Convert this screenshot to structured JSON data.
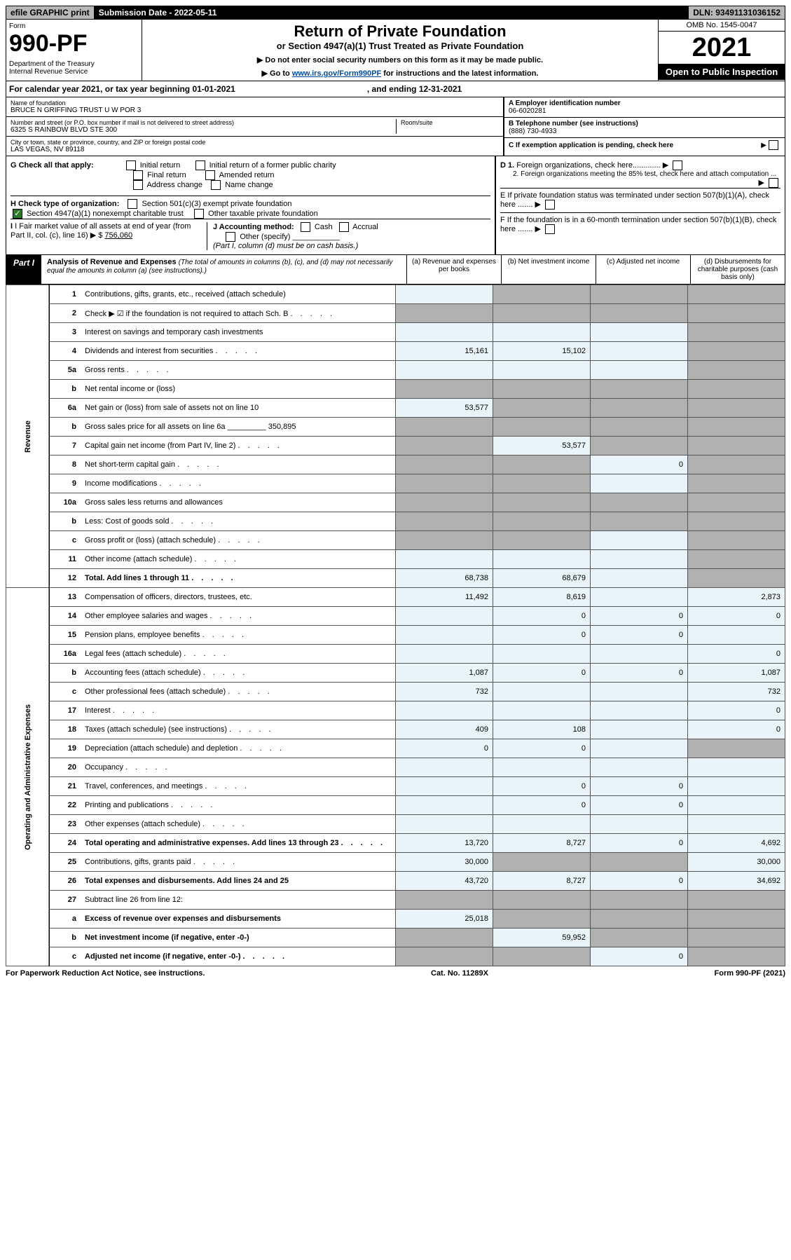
{
  "top": {
    "efile": "efile GRAPHIC print",
    "sub_label": "Submission Date - 2022-05-11",
    "dln": "DLN: 93491131036152"
  },
  "header": {
    "form_label": "Form",
    "form_num": "990-PF",
    "dept": "Department of the Treasury\nInternal Revenue Service",
    "title": "Return of Private Foundation",
    "subtitle": "or Section 4947(a)(1) Trust Treated as Private Foundation",
    "instr1": "▶ Do not enter social security numbers on this form as it may be made public.",
    "instr2_pre": "▶ Go to ",
    "instr2_link": "www.irs.gov/Form990PF",
    "instr2_post": " for instructions and the latest information.",
    "omb": "OMB No. 1545-0047",
    "year": "2021",
    "open": "Open to Public Inspection"
  },
  "cal": {
    "text": "For calendar year 2021, or tax year beginning 01-01-2021",
    "end": ", and ending 12-31-2021"
  },
  "info": {
    "name_label": "Name of foundation",
    "name": "BRUCE N GRIFFING TRUST U W POR 3",
    "addr_label": "Number and street (or P.O. box number if mail is not delivered to street address)",
    "addr": "6325 S RAINBOW BLVD STE 300",
    "room_label": "Room/suite",
    "city_label": "City or town, state or province, country, and ZIP or foreign postal code",
    "city": "LAS VEGAS, NV  89118",
    "a_label": "A Employer identification number",
    "a_val": "06-6020281",
    "b_label": "B Telephone number (see instructions)",
    "b_val": "(888) 730-4933",
    "c_label": "C If exemption application is pending, check here"
  },
  "g": {
    "label": "G Check all that apply:",
    "opts": [
      "Initial return",
      "Final return",
      "Address change",
      "Initial return of a former public charity",
      "Amended return",
      "Name change"
    ]
  },
  "h": {
    "label": "H Check type of organization:",
    "o1": "Section 501(c)(3) exempt private foundation",
    "o2": "Section 4947(a)(1) nonexempt charitable trust",
    "o3": "Other taxable private foundation"
  },
  "d": {
    "d1": "D 1. Foreign organizations, check here",
    "d2": "2. Foreign organizations meeting the 85% test, check here and attach computation ...",
    "e": "E  If private foundation status was terminated under section 507(b)(1)(A), check here .......",
    "f": "F  If the foundation is in a 60-month termination under section 507(b)(1)(B), check here ......."
  },
  "i": {
    "label": "I Fair market value of all assets at end of year (from Part II, col. (c), line 16)",
    "val": "756,060"
  },
  "j": {
    "label": "J Accounting method:",
    "cash": "Cash",
    "accrual": "Accrual",
    "other": "Other (specify)",
    "note": "(Part I, column (d) must be on cash basis.)"
  },
  "part1": {
    "label": "Part I",
    "title": "Analysis of Revenue and Expenses",
    "note": "(The total of amounts in columns (b), (c), and (d) may not necessarily equal the amounts in column (a) (see instructions).)",
    "ca": "(a)  Revenue and expenses per books",
    "cb": "(b)  Net investment income",
    "cc": "(c)  Adjusted net income",
    "cd": "(d)  Disbursements for charitable purposes (cash basis only)"
  },
  "side": {
    "rev": "Revenue",
    "exp": "Operating and Administrative Expenses"
  },
  "rows": [
    {
      "n": "1",
      "d": "Contributions, gifts, grants, etc., received (attach schedule)",
      "a": "",
      "b": "g",
      "c": "g",
      "x": "g"
    },
    {
      "n": "2",
      "d": "Check ▶ ☑ if the foundation is not required to attach Sch. B",
      "a": "g",
      "b": "g",
      "c": "g",
      "x": "g",
      "dots": true
    },
    {
      "n": "3",
      "d": "Interest on savings and temporary cash investments",
      "a": "",
      "b": "",
      "c": "",
      "x": "g"
    },
    {
      "n": "4",
      "d": "Dividends and interest from securities",
      "a": "15,161",
      "b": "15,102",
      "c": "",
      "x": "g",
      "dots": true
    },
    {
      "n": "5a",
      "d": "Gross rents",
      "a": "",
      "b": "",
      "c": "",
      "x": "g",
      "dots": true
    },
    {
      "n": "b",
      "d": "Net rental income or (loss)",
      "a": "g",
      "b": "g",
      "c": "g",
      "x": "g"
    },
    {
      "n": "6a",
      "d": "Net gain or (loss) from sale of assets not on line 10",
      "a": "53,577",
      "b": "g",
      "c": "g",
      "x": "g"
    },
    {
      "n": "b",
      "d": "Gross sales price for all assets on line 6a _________ 350,895",
      "a": "g",
      "b": "g",
      "c": "g",
      "x": "g"
    },
    {
      "n": "7",
      "d": "Capital gain net income (from Part IV, line 2)",
      "a": "g",
      "b": "53,577",
      "c": "g",
      "x": "g",
      "dots": true
    },
    {
      "n": "8",
      "d": "Net short-term capital gain",
      "a": "g",
      "b": "g",
      "c": "0",
      "x": "g",
      "dots": true
    },
    {
      "n": "9",
      "d": "Income modifications",
      "a": "g",
      "b": "g",
      "c": "",
      "x": "g",
      "dots": true
    },
    {
      "n": "10a",
      "d": "Gross sales less returns and allowances",
      "a": "g",
      "b": "g",
      "c": "g",
      "x": "g"
    },
    {
      "n": "b",
      "d": "Less: Cost of goods sold",
      "a": "g",
      "b": "g",
      "c": "g",
      "x": "g",
      "dots": true
    },
    {
      "n": "c",
      "d": "Gross profit or (loss) (attach schedule)",
      "a": "g",
      "b": "g",
      "c": "",
      "x": "g",
      "dots": true
    },
    {
      "n": "11",
      "d": "Other income (attach schedule)",
      "a": "",
      "b": "",
      "c": "",
      "x": "g",
      "dots": true
    },
    {
      "n": "12",
      "d": "Total. Add lines 1 through 11",
      "a": "68,738",
      "b": "68,679",
      "c": "",
      "x": "g",
      "bold": true,
      "dots": true
    },
    {
      "n": "13",
      "d": "Compensation of officers, directors, trustees, etc.",
      "a": "11,492",
      "b": "8,619",
      "c": "",
      "x": "2,873"
    },
    {
      "n": "14",
      "d": "Other employee salaries and wages",
      "a": "",
      "b": "0",
      "c": "0",
      "x": "0",
      "dots": true
    },
    {
      "n": "15",
      "d": "Pension plans, employee benefits",
      "a": "",
      "b": "0",
      "c": "0",
      "x": "",
      "dots": true
    },
    {
      "n": "16a",
      "d": "Legal fees (attach schedule)",
      "a": "",
      "b": "",
      "c": "",
      "x": "0",
      "dots": true
    },
    {
      "n": "b",
      "d": "Accounting fees (attach schedule)",
      "a": "1,087",
      "b": "0",
      "c": "0",
      "x": "1,087",
      "dots": true
    },
    {
      "n": "c",
      "d": "Other professional fees (attach schedule)",
      "a": "732",
      "b": "",
      "c": "",
      "x": "732",
      "dots": true
    },
    {
      "n": "17",
      "d": "Interest",
      "a": "",
      "b": "",
      "c": "",
      "x": "0",
      "dots": true
    },
    {
      "n": "18",
      "d": "Taxes (attach schedule) (see instructions)",
      "a": "409",
      "b": "108",
      "c": "",
      "x": "0",
      "dots": true
    },
    {
      "n": "19",
      "d": "Depreciation (attach schedule) and depletion",
      "a": "0",
      "b": "0",
      "c": "",
      "x": "g",
      "dots": true
    },
    {
      "n": "20",
      "d": "Occupancy",
      "a": "",
      "b": "",
      "c": "",
      "x": "",
      "dots": true
    },
    {
      "n": "21",
      "d": "Travel, conferences, and meetings",
      "a": "",
      "b": "0",
      "c": "0",
      "x": "",
      "dots": true
    },
    {
      "n": "22",
      "d": "Printing and publications",
      "a": "",
      "b": "0",
      "c": "0",
      "x": "",
      "dots": true
    },
    {
      "n": "23",
      "d": "Other expenses (attach schedule)",
      "a": "",
      "b": "",
      "c": "",
      "x": "",
      "dots": true
    },
    {
      "n": "24",
      "d": "Total operating and administrative expenses. Add lines 13 through 23",
      "a": "13,720",
      "b": "8,727",
      "c": "0",
      "x": "4,692",
      "bold": true,
      "dots": true
    },
    {
      "n": "25",
      "d": "Contributions, gifts, grants paid",
      "a": "30,000",
      "b": "g",
      "c": "g",
      "x": "30,000",
      "dots": true
    },
    {
      "n": "26",
      "d": "Total expenses and disbursements. Add lines 24 and 25",
      "a": "43,720",
      "b": "8,727",
      "c": "0",
      "x": "34,692",
      "bold": true
    },
    {
      "n": "27",
      "d": "Subtract line 26 from line 12:",
      "a": "g",
      "b": "g",
      "c": "g",
      "x": "g"
    },
    {
      "n": "a",
      "d": "Excess of revenue over expenses and disbursements",
      "a": "25,018",
      "b": "g",
      "c": "g",
      "x": "g",
      "bold": true
    },
    {
      "n": "b",
      "d": "Net investment income (if negative, enter -0-)",
      "a": "g",
      "b": "59,952",
      "c": "g",
      "x": "g",
      "bold": true
    },
    {
      "n": "c",
      "d": "Adjusted net income (if negative, enter -0-)",
      "a": "g",
      "b": "g",
      "c": "0",
      "x": "g",
      "bold": true,
      "dots": true
    }
  ],
  "footer": {
    "left": "For Paperwork Reduction Act Notice, see instructions.",
    "center": "Cat. No. 11289X",
    "right": "Form 990-PF (2021)"
  },
  "colors": {
    "topbar_bg": "#b8b8b8",
    "val_bg": "#e8f4f8",
    "gray_bg": "#b0b0b0",
    "link": "#004b9b"
  }
}
